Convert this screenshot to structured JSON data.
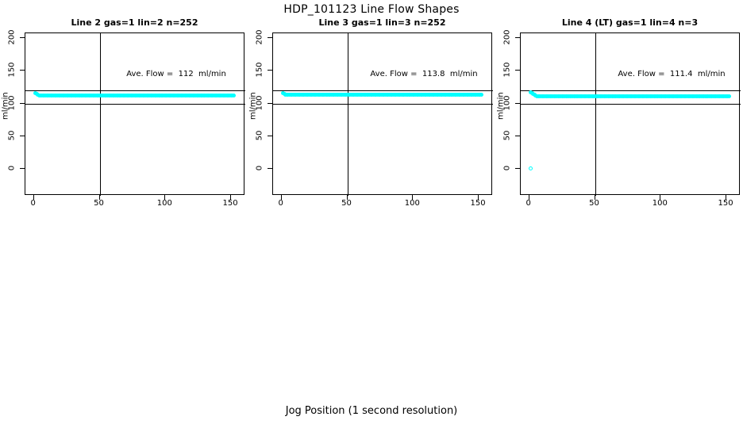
{
  "title": "HDP_101123  Line Flow Shapes",
  "xlabel": "Jog Position (1 second resolution)",
  "colors": {
    "point_color": "#00FFFF",
    "axis_color": "#000000",
    "background": "#FFFFFF"
  },
  "chart_data": [
    {
      "type": "scatter",
      "title": "Line 2 gas=1 lin=2 n=252",
      "ylabel": "ml/min",
      "annotation": "Ave. Flow =  112  ml/min",
      "ave_flow_ml_min": 112,
      "n": 252,
      "x_ticks": [
        0,
        50,
        100,
        150
      ],
      "y_ticks": [
        0,
        50,
        100,
        150,
        200
      ],
      "xlim": [
        -6.5,
        161
      ],
      "ylim": [
        -41,
        207
      ],
      "grid": false,
      "ref_lines_y": [
        100,
        120
      ],
      "ref_line_x": 50,
      "head_points": [
        [
          1,
          116
        ],
        [
          2,
          114
        ],
        [
          3,
          113
        ],
        [
          4,
          112.5
        ]
      ],
      "band": {
        "x_from": 5,
        "x_to": 152,
        "y": 112
      },
      "outliers": []
    },
    {
      "type": "scatter",
      "title": "Line 3 gas=1 lin=3 n=252",
      "ylabel": "ml/min",
      "annotation": "Ave. Flow =  113.8  ml/min",
      "ave_flow_ml_min": 113.8,
      "n": 252,
      "x_ticks": [
        0,
        50,
        100,
        150
      ],
      "y_ticks": [
        0,
        50,
        100,
        150,
        200
      ],
      "xlim": [
        -6.5,
        161
      ],
      "ylim": [
        -41,
        207
      ],
      "grid": false,
      "ref_lines_y": [
        100,
        120
      ],
      "ref_line_x": 50,
      "head_points": [
        [
          1,
          116
        ],
        [
          2,
          114.5
        ]
      ],
      "band": {
        "x_from": 3,
        "x_to": 152,
        "y": 113.8
      },
      "outliers": []
    },
    {
      "type": "scatter",
      "title": "Line 4 (LT) gas=1 lin=4 n=3",
      "ylabel": "ml/min",
      "annotation": "Ave. Flow =  111.4  ml/min",
      "ave_flow_ml_min": 111.4,
      "n": 3,
      "x_ticks": [
        0,
        50,
        100,
        150
      ],
      "y_ticks": [
        0,
        50,
        100,
        150,
        200
      ],
      "xlim": [
        -6.5,
        161
      ],
      "ylim": [
        -41,
        207
      ],
      "grid": false,
      "ref_lines_y": [
        100,
        120
      ],
      "ref_line_x": 50,
      "head_points": [
        [
          1,
          117
        ],
        [
          2,
          115.5
        ],
        [
          3,
          114
        ],
        [
          4,
          113
        ],
        [
          5,
          112.5
        ]
      ],
      "band": {
        "x_from": 6,
        "x_to": 152,
        "y": 111.4
      },
      "outliers": [
        [
          1.5,
          0
        ]
      ]
    }
  ]
}
